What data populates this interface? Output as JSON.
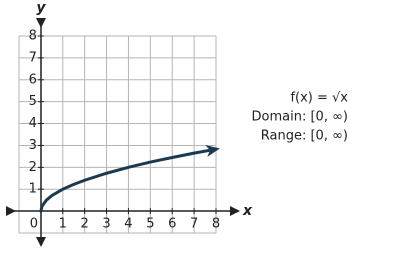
{
  "chart_data": {
    "type": "line",
    "x": [
      0,
      0.05,
      0.25,
      0.5,
      1,
      1.5,
      2,
      3,
      4,
      5,
      6,
      7,
      8
    ],
    "series": [
      {
        "color": "#1b3a52",
        "values": [
          0,
          0.22,
          0.5,
          0.71,
          1,
          1.22,
          1.41,
          1.73,
          2,
          2.24,
          2.45,
          2.65,
          2.83
        ]
      }
    ],
    "xlim": [
      -1,
      8
    ],
    "ylim": [
      -1,
      8
    ],
    "xticks": [
      0,
      1,
      2,
      3,
      4,
      5,
      6,
      7,
      8
    ],
    "yticks": [
      1,
      2,
      3,
      4,
      5,
      6,
      7,
      8
    ],
    "xlabel": "x",
    "ylabel": "y",
    "grid": true,
    "annotations": [
      "f(x) = √x",
      "Domain: [0, ∞)",
      "Range: [0, ∞)"
    ]
  }
}
